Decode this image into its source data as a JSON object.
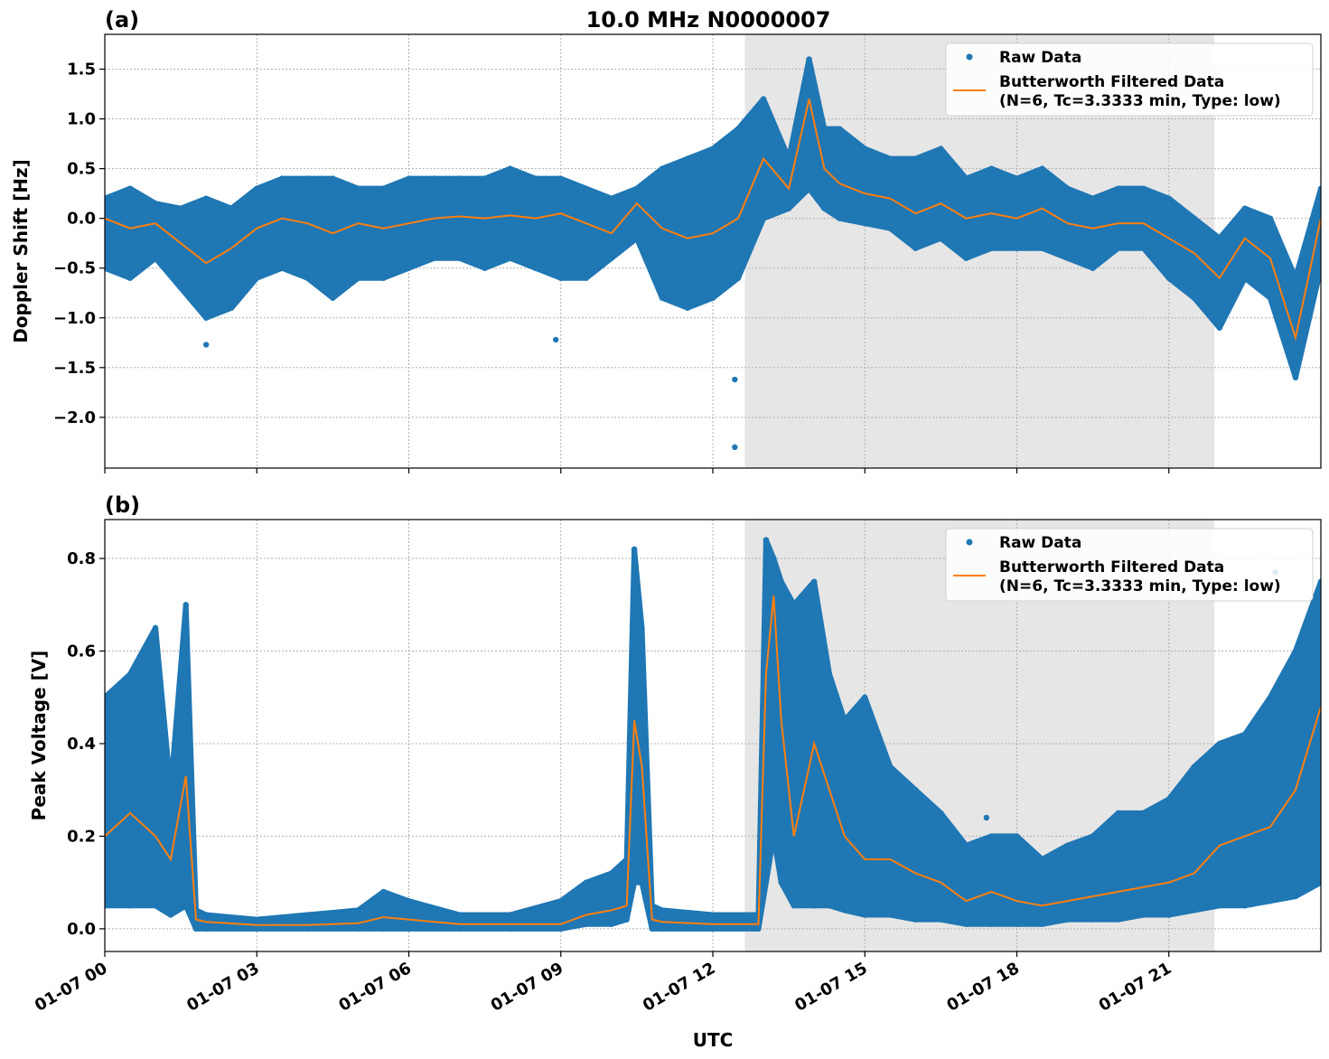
{
  "figure": {
    "title": "10.0 MHz N0000007",
    "xlabel": "UTC"
  },
  "chart_data": [
    {
      "type": "scatter+line",
      "panel_label": "(a)",
      "ylabel": "Doppler Shift [Hz]",
      "ylim": [
        -2.51,
        1.85
      ],
      "yticks": [
        1.5,
        1.0,
        0.5,
        0.0,
        -0.5,
        -1.0,
        -1.5,
        -2.0
      ],
      "ytick_labels": [
        "1.5",
        "1.0",
        "0.5",
        "0.0",
        "−0.5",
        "−1.0",
        "−1.5",
        "−2.0"
      ],
      "xlim": [
        "01-07 00:00",
        "01-08 00:00"
      ],
      "xticks": [
        "01-07 00",
        "01-07 03",
        "01-07 06",
        "01-07 09",
        "01-07 12",
        "01-07 15",
        "01-07 18",
        "01-07 21"
      ],
      "grid": true,
      "shaded_span": [
        "01-07 12:38",
        "01-07 21:54"
      ],
      "shade_color": "#e6e6e6",
      "legend": {
        "placement": "top-right",
        "entries": [
          "Raw Data",
          "Butterworth Filtered Data",
          "(N=6, Tc=3.3333 min, Type: low)"
        ]
      },
      "x": [
        "00:00",
        "00:30",
        "01:00",
        "01:30",
        "02:00",
        "02:30",
        "03:00",
        "03:30",
        "04:00",
        "04:30",
        "05:00",
        "05:30",
        "06:00",
        "06:30",
        "07:00",
        "07:30",
        "08:00",
        "08:30",
        "09:00",
        "09:30",
        "10:00",
        "10:30",
        "11:00",
        "11:30",
        "12:00",
        "12:30",
        "13:00",
        "13:30",
        "13:54",
        "14:12",
        "14:30",
        "15:00",
        "15:30",
        "16:00",
        "16:30",
        "17:00",
        "17:30",
        "18:00",
        "18:30",
        "19:00",
        "19:30",
        "20:00",
        "20:30",
        "21:00",
        "21:30",
        "22:00",
        "22:30",
        "23:00",
        "23:30",
        "24:00"
      ],
      "series": [
        {
          "name": "Raw Data",
          "kind": "scatter-range",
          "color": "#1f77b4",
          "low": [
            -0.5,
            -0.6,
            -0.4,
            -0.7,
            -1.0,
            -0.9,
            -0.6,
            -0.5,
            -0.6,
            -0.8,
            -0.6,
            -0.6,
            -0.5,
            -0.4,
            -0.4,
            -0.5,
            -0.4,
            -0.5,
            -0.6,
            -0.6,
            -0.4,
            -0.2,
            -0.8,
            -0.9,
            -0.8,
            -0.6,
            0.0,
            0.1,
            0.3,
            0.1,
            0.0,
            -0.05,
            -0.1,
            -0.3,
            -0.2,
            -0.4,
            -0.3,
            -0.3,
            -0.3,
            -0.4,
            -0.5,
            -0.3,
            -0.3,
            -0.6,
            -0.8,
            -1.1,
            -0.6,
            -0.8,
            -1.6,
            -0.5
          ],
          "high": [
            0.2,
            0.3,
            0.15,
            0.1,
            0.2,
            0.1,
            0.3,
            0.4,
            0.4,
            0.4,
            0.3,
            0.3,
            0.4,
            0.4,
            0.4,
            0.4,
            0.5,
            0.4,
            0.4,
            0.3,
            0.2,
            0.3,
            0.5,
            0.6,
            0.7,
            0.9,
            1.2,
            0.6,
            1.6,
            0.9,
            0.9,
            0.7,
            0.6,
            0.6,
            0.7,
            0.4,
            0.5,
            0.4,
            0.5,
            0.3,
            0.2,
            0.3,
            0.3,
            0.2,
            0.0,
            -0.2,
            0.1,
            0.0,
            -0.6,
            0.3
          ],
          "outliers": [
            [
              "12:26",
              -2.3
            ],
            [
              "12:26",
              -1.62
            ],
            [
              "02:00",
              -1.27
            ],
            [
              "08:54",
              -1.22
            ]
          ]
        },
        {
          "name": "Butterworth Filtered Data",
          "kind": "line",
          "color": "#ff7f0e",
          "values": [
            0,
            -0.1,
            -0.05,
            -0.25,
            -0.45,
            -0.3,
            -0.1,
            0,
            -0.05,
            -0.15,
            -0.05,
            -0.1,
            -0.05,
            0,
            0.02,
            0,
            0.03,
            0,
            0.05,
            -0.05,
            -0.15,
            0.15,
            -0.1,
            -0.2,
            -0.15,
            0,
            0.6,
            0.3,
            1.2,
            0.5,
            0.35,
            0.25,
            0.2,
            0.05,
            0.15,
            0,
            0.05,
            0,
            0.1,
            -0.05,
            -0.1,
            -0.05,
            -0.05,
            -0.2,
            -0.35,
            -0.6,
            -0.2,
            -0.4,
            -1.2,
            0
          ]
        }
      ]
    },
    {
      "type": "scatter+line",
      "panel_label": "(b)",
      "ylabel": "Peak Voltage [V]",
      "ylim": [
        -0.049,
        0.884
      ],
      "yticks": [
        0.0,
        0.2,
        0.4,
        0.6,
        0.8
      ],
      "ytick_labels": [
        "0.0",
        "0.2",
        "0.4",
        "0.6",
        "0.8"
      ],
      "xlim": [
        "01-07 00:00",
        "01-08 00:00"
      ],
      "xticks": [
        "01-07 00",
        "01-07 03",
        "01-07 06",
        "01-07 09",
        "01-07 12",
        "01-07 15",
        "01-07 18",
        "01-07 21"
      ],
      "grid": true,
      "shaded_span": [
        "01-07 12:38",
        "01-07 21:54"
      ],
      "shade_color": "#e6e6e6",
      "legend": {
        "placement": "top-right",
        "entries": [
          "Raw Data",
          "Butterworth Filtered Data",
          "(N=6, Tc=3.3333 min, Type: low)"
        ]
      },
      "x": [
        "00:00",
        "00:30",
        "01:00",
        "01:18",
        "01:36",
        "01:48",
        "02:00",
        "03:00",
        "04:00",
        "05:00",
        "05:30",
        "06:00",
        "07:00",
        "08:00",
        "09:00",
        "09:30",
        "10:00",
        "10:18",
        "10:27",
        "10:36",
        "10:48",
        "11:00",
        "12:00",
        "12:54",
        "13:03",
        "13:12",
        "13:21",
        "13:36",
        "14:00",
        "14:18",
        "14:36",
        "15:00",
        "15:30",
        "16:00",
        "16:30",
        "17:00",
        "17:30",
        "18:00",
        "18:30",
        "19:00",
        "19:30",
        "20:00",
        "20:30",
        "21:00",
        "21:30",
        "22:00",
        "22:30",
        "23:00",
        "23:30",
        "24:00"
      ],
      "series": [
        {
          "name": "Raw Data",
          "kind": "scatter-range",
          "color": "#1f77b4",
          "low": [
            0.05,
            0.05,
            0.05,
            0.03,
            0.05,
            0.0,
            0.0,
            0.0,
            0.0,
            0.0,
            0.0,
            0.0,
            0.0,
            0.0,
            0.0,
            0.01,
            0.01,
            0.02,
            0.1,
            0.1,
            0.0,
            0.0,
            0.0,
            0.0,
            0.1,
            0.2,
            0.1,
            0.05,
            0.05,
            0.05,
            0.04,
            0.03,
            0.03,
            0.02,
            0.02,
            0.01,
            0.01,
            0.01,
            0.01,
            0.02,
            0.02,
            0.02,
            0.03,
            0.03,
            0.04,
            0.05,
            0.05,
            0.06,
            0.07,
            0.1
          ],
          "high": [
            0.5,
            0.55,
            0.65,
            0.3,
            0.7,
            0.04,
            0.03,
            0.02,
            0.03,
            0.04,
            0.08,
            0.06,
            0.03,
            0.03,
            0.06,
            0.1,
            0.12,
            0.15,
            0.82,
            0.65,
            0.05,
            0.04,
            0.03,
            0.03,
            0.84,
            0.8,
            0.75,
            0.7,
            0.75,
            0.55,
            0.45,
            0.5,
            0.35,
            0.3,
            0.25,
            0.18,
            0.2,
            0.2,
            0.15,
            0.18,
            0.2,
            0.25,
            0.25,
            0.28,
            0.35,
            0.4,
            0.42,
            0.5,
            0.6,
            0.75
          ],
          "outliers": [
            [
              "23:06",
              0.77
            ],
            [
              "17:24",
              0.24
            ]
          ]
        },
        {
          "name": "Butterworth Filtered Data",
          "kind": "line",
          "color": "#ff7f0e",
          "values": [
            0.2,
            0.25,
            0.2,
            0.15,
            0.33,
            0.02,
            0.015,
            0.008,
            0.008,
            0.012,
            0.025,
            0.02,
            0.01,
            0.01,
            0.01,
            0.03,
            0.04,
            0.05,
            0.45,
            0.35,
            0.02,
            0.015,
            0.01,
            0.01,
            0.55,
            0.72,
            0.45,
            0.2,
            0.4,
            0.3,
            0.2,
            0.15,
            0.15,
            0.12,
            0.1,
            0.06,
            0.08,
            0.06,
            0.05,
            0.06,
            0.07,
            0.08,
            0.09,
            0.1,
            0.12,
            0.18,
            0.2,
            0.22,
            0.3,
            0.48
          ]
        }
      ]
    }
  ]
}
